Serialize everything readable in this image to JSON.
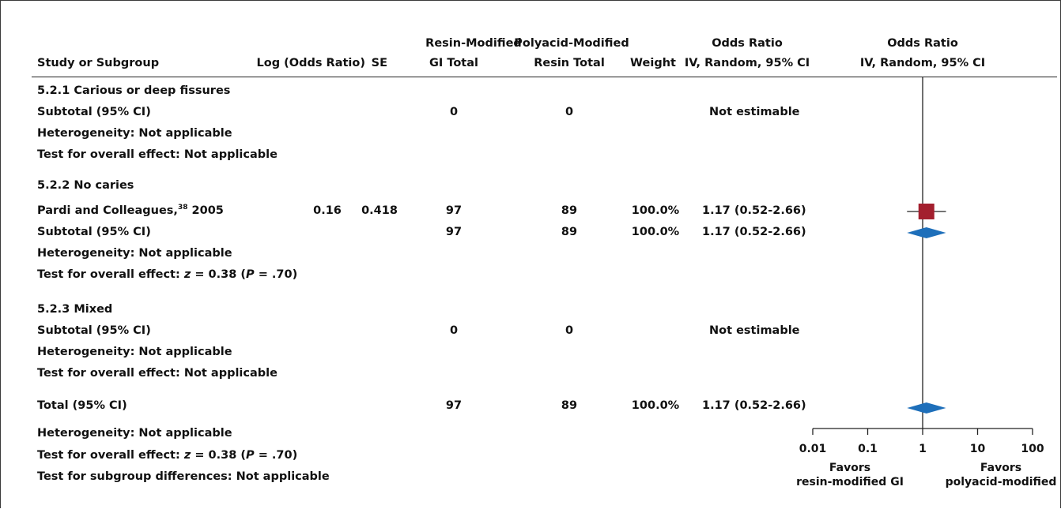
{
  "header": {
    "row1": {
      "rm_group": "Resin-Modified",
      "pm_group": "Polyacid-Modified",
      "or_col": "Odds Ratio",
      "or_plot": "Odds Ratio"
    },
    "row2": {
      "study": "Study or Subgroup",
      "log_or": "Log (Odds Ratio)",
      "se": "SE",
      "rm_total": "GI Total",
      "pm_total": "Resin Total",
      "weight": "Weight",
      "or_col": "IV, Random, 95% CI",
      "or_plot": "IV, Random, 95% CI"
    }
  },
  "rows": [
    {
      "study": "5.2.1 Carious or deep fissures"
    },
    {
      "study": "Subtotal (95% CI)",
      "rm_total": "0",
      "pm_total": "0",
      "or_ci": "Not estimable"
    },
    {
      "study": "Heterogeneity: Not applicable"
    },
    {
      "study": "Test for overall effect: Not applicable"
    },
    {
      "study": "5.2.2 No caries"
    },
    {
      "study_pre": "Pardi and Colleagues,",
      "study_sup": "38",
      "study_post": " 2005",
      "log_or": "0.16",
      "se": "0.418",
      "rm_total": "97",
      "pm_total": "89",
      "weight": "100.0%",
      "or_ci": "1.17 (0.52-2.66)"
    },
    {
      "study": "Subtotal (95% CI)",
      "rm_total": "97",
      "pm_total": "89",
      "weight": "100.0%",
      "or_ci": "1.17 (0.52-2.66)"
    },
    {
      "study": "Heterogeneity: Not applicable"
    },
    {
      "study_pre": "Test for overall effect: ",
      "z_var": "z",
      "z_val": " = 0.38 (",
      "p_var": "P",
      "p_val": " = .70)"
    },
    {
      "study": "5.2.3 Mixed"
    },
    {
      "study": "Subtotal (95% CI)",
      "rm_total": "0",
      "pm_total": "0",
      "or_ci": "Not estimable"
    },
    {
      "study": "Heterogeneity: Not applicable"
    },
    {
      "study": "Test for overall effect: Not applicable"
    },
    {
      "study": "Total (95% CI)",
      "rm_total": "97",
      "pm_total": "89",
      "weight": "100.0%",
      "or_ci": "1.17 (0.52-2.66)"
    },
    {
      "study": "Heterogeneity: Not applicable"
    },
    {
      "study_pre": "Test for overall effect: ",
      "z_var": "z",
      "z_val": " = 0.38 (",
      "p_var": "P",
      "p_val": " = .70)"
    },
    {
      "study": "Test for subgroup differences: Not applicable"
    }
  ],
  "chart_data": {
    "type": "forest",
    "x_scale": "log",
    "x_ticks": [
      0.01,
      0.1,
      1,
      10,
      100
    ],
    "x_tick_labels": [
      "0.01",
      "0.1",
      "1",
      "10",
      "100"
    ],
    "xlim": [
      0.01,
      100
    ],
    "null_line": 1,
    "favors_left": [
      "Favors",
      "resin-modified GI"
    ],
    "favors_right": [
      "Favors",
      "polyacid-modified"
    ],
    "study_marker": {
      "or": 1.17,
      "ci": [
        0.52,
        2.66
      ],
      "color": "#a31f2e"
    },
    "subtotal_diamond": {
      "or": 1.17,
      "ci": [
        0.52,
        2.66
      ],
      "color": "#1e6fba"
    },
    "total_diamond": {
      "or": 1.17,
      "ci": [
        0.52,
        2.66
      ],
      "color": "#1e6fba"
    }
  }
}
